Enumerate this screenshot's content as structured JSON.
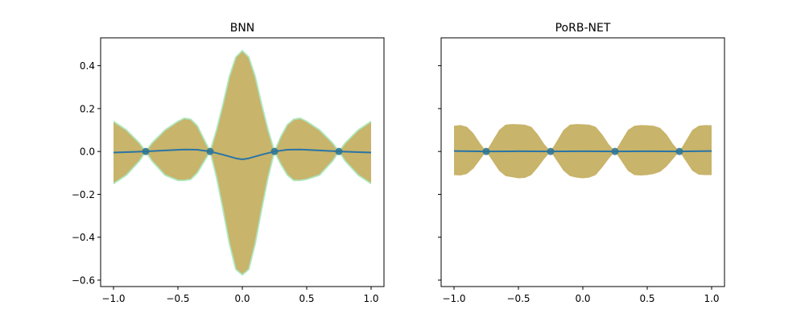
{
  "colors": {
    "band_fill": "#c8b46a",
    "band_edge": "#a8e6bd",
    "mean_line": "#2a74a6",
    "points": "#2f7593",
    "axes": "#000000"
  },
  "chart_data": [
    {
      "type": "line",
      "title": "BNN",
      "xlim": [
        -1.1,
        1.1
      ],
      "ylim": [
        -0.63,
        0.53
      ],
      "xticks": [
        -1.0,
        -0.5,
        0.0,
        0.5,
        1.0
      ],
      "xtick_labels": [
        "−1.0",
        "−0.5",
        "0.0",
        "0.5",
        "1.0"
      ],
      "yticks": [
        -0.6,
        -0.4,
        -0.2,
        0.0,
        0.2,
        0.4
      ],
      "ytick_labels": [
        "−0.6",
        "−0.4",
        "−0.2",
        "0.0",
        "0.2",
        "0.4"
      ],
      "show_yticklabels": true,
      "band_edge_visible": true,
      "series": [
        {
          "kind": "mean",
          "x": [
            -1.0,
            -0.9,
            -0.75,
            -0.6,
            -0.45,
            -0.35,
            -0.25,
            -0.15,
            -0.05,
            0.0,
            0.05,
            0.15,
            0.25,
            0.35,
            0.45,
            0.6,
            0.75,
            0.9,
            1.0
          ],
          "y": [
            -0.005,
            -0.003,
            0.0,
            0.005,
            0.009,
            0.008,
            0.0,
            -0.015,
            -0.032,
            -0.037,
            -0.032,
            -0.015,
            0.0,
            0.008,
            0.009,
            0.005,
            0.0,
            -0.003,
            -0.005
          ]
        },
        {
          "kind": "band_upper",
          "x": [
            -1.0,
            -0.9,
            -0.8,
            -0.75,
            -0.7,
            -0.6,
            -0.5,
            -0.45,
            -0.4,
            -0.35,
            -0.3,
            -0.25,
            -0.2,
            -0.15,
            -0.1,
            -0.05,
            0.0,
            0.05,
            0.1,
            0.15,
            0.2,
            0.25,
            0.3,
            0.35,
            0.4,
            0.45,
            0.5,
            0.6,
            0.7,
            0.75,
            0.8,
            0.9,
            1.0
          ],
          "y": [
            0.14,
            0.1,
            0.04,
            0.0,
            0.04,
            0.1,
            0.14,
            0.155,
            0.15,
            0.12,
            0.06,
            0.0,
            0.1,
            0.22,
            0.35,
            0.44,
            0.47,
            0.44,
            0.35,
            0.22,
            0.1,
            0.0,
            0.07,
            0.125,
            0.15,
            0.155,
            0.14,
            0.1,
            0.04,
            0.0,
            0.04,
            0.1,
            0.14
          ]
        },
        {
          "kind": "band_lower",
          "x": [
            -1.0,
            -0.9,
            -0.8,
            -0.75,
            -0.7,
            -0.6,
            -0.5,
            -0.45,
            -0.4,
            -0.35,
            -0.3,
            -0.25,
            -0.2,
            -0.15,
            -0.1,
            -0.05,
            0.0,
            0.05,
            0.1,
            0.15,
            0.2,
            0.25,
            0.3,
            0.35,
            0.4,
            0.45,
            0.5,
            0.6,
            0.7,
            0.75,
            0.8,
            0.9,
            1.0
          ],
          "y": [
            -0.15,
            -0.11,
            -0.045,
            0.0,
            -0.045,
            -0.11,
            -0.135,
            -0.135,
            -0.13,
            -0.1,
            -0.05,
            0.0,
            -0.12,
            -0.27,
            -0.43,
            -0.55,
            -0.575,
            -0.55,
            -0.43,
            -0.27,
            -0.12,
            0.0,
            -0.06,
            -0.11,
            -0.135,
            -0.135,
            -0.13,
            -0.11,
            -0.045,
            0.0,
            -0.045,
            -0.11,
            -0.15
          ]
        },
        {
          "kind": "observations",
          "x": [
            -0.75,
            -0.25,
            0.25,
            0.75
          ],
          "y": [
            0.0,
            0.0,
            0.0,
            0.0
          ]
        }
      ]
    },
    {
      "type": "line",
      "title": "PoRB-NET",
      "xlim": [
        -1.1,
        1.1
      ],
      "ylim": [
        -0.63,
        0.53
      ],
      "xticks": [
        -1.0,
        -0.5,
        0.0,
        0.5,
        1.0
      ],
      "xtick_labels": [
        "−1.0",
        "−0.5",
        "0.0",
        "0.5",
        "1.0"
      ],
      "yticks": [
        -0.6,
        -0.4,
        -0.2,
        0.0,
        0.2,
        0.4
      ],
      "ytick_labels": [],
      "show_yticklabels": false,
      "band_edge_visible": false,
      "series": [
        {
          "kind": "mean",
          "x": [
            -1.0,
            -0.75,
            -0.5,
            -0.25,
            0.0,
            0.25,
            0.5,
            0.75,
            1.0
          ],
          "y": [
            0.002,
            0.0,
            0.001,
            0.0,
            0.001,
            0.0,
            0.001,
            0.0,
            0.002
          ]
        },
        {
          "kind": "band_upper",
          "x": [
            -1.0,
            -0.95,
            -0.9,
            -0.85,
            -0.8,
            -0.75,
            -0.7,
            -0.65,
            -0.6,
            -0.55,
            -0.5,
            -0.45,
            -0.4,
            -0.35,
            -0.3,
            -0.25,
            -0.2,
            -0.15,
            -0.1,
            -0.05,
            0.0,
            0.05,
            0.1,
            0.15,
            0.2,
            0.25,
            0.3,
            0.35,
            0.4,
            0.45,
            0.5,
            0.55,
            0.6,
            0.65,
            0.7,
            0.75,
            0.8,
            0.85,
            0.9,
            0.95,
            1.0
          ],
          "y": [
            0.12,
            0.123,
            0.115,
            0.085,
            0.04,
            0.0,
            0.05,
            0.1,
            0.125,
            0.128,
            0.127,
            0.125,
            0.115,
            0.08,
            0.035,
            0.0,
            0.05,
            0.1,
            0.125,
            0.128,
            0.127,
            0.125,
            0.115,
            0.08,
            0.035,
            0.0,
            0.05,
            0.1,
            0.12,
            0.123,
            0.122,
            0.12,
            0.11,
            0.08,
            0.035,
            0.0,
            0.05,
            0.1,
            0.12,
            0.123,
            0.122
          ]
        },
        {
          "kind": "band_lower",
          "x": [
            -1.0,
            -0.95,
            -0.9,
            -0.85,
            -0.8,
            -0.75,
            -0.7,
            -0.65,
            -0.6,
            -0.55,
            -0.5,
            -0.45,
            -0.4,
            -0.35,
            -0.3,
            -0.25,
            -0.2,
            -0.15,
            -0.1,
            -0.05,
            0.0,
            0.05,
            0.1,
            0.15,
            0.2,
            0.25,
            0.3,
            0.35,
            0.4,
            0.45,
            0.5,
            0.55,
            0.6,
            0.65,
            0.7,
            0.75,
            0.8,
            0.85,
            0.9,
            0.95,
            1.0
          ],
          "y": [
            -0.11,
            -0.112,
            -0.105,
            -0.08,
            -0.04,
            0.0,
            -0.045,
            -0.09,
            -0.115,
            -0.12,
            -0.125,
            -0.123,
            -0.11,
            -0.075,
            -0.035,
            0.0,
            -0.045,
            -0.09,
            -0.115,
            -0.122,
            -0.125,
            -0.122,
            -0.11,
            -0.075,
            -0.035,
            0.0,
            -0.045,
            -0.09,
            -0.11,
            -0.112,
            -0.11,
            -0.105,
            -0.095,
            -0.07,
            -0.035,
            0.0,
            -0.045,
            -0.09,
            -0.108,
            -0.11,
            -0.11
          ]
        },
        {
          "kind": "observations",
          "x": [
            -0.75,
            -0.25,
            0.25,
            0.75
          ],
          "y": [
            0.0,
            0.0,
            0.0,
            0.0
          ]
        }
      ]
    }
  ]
}
